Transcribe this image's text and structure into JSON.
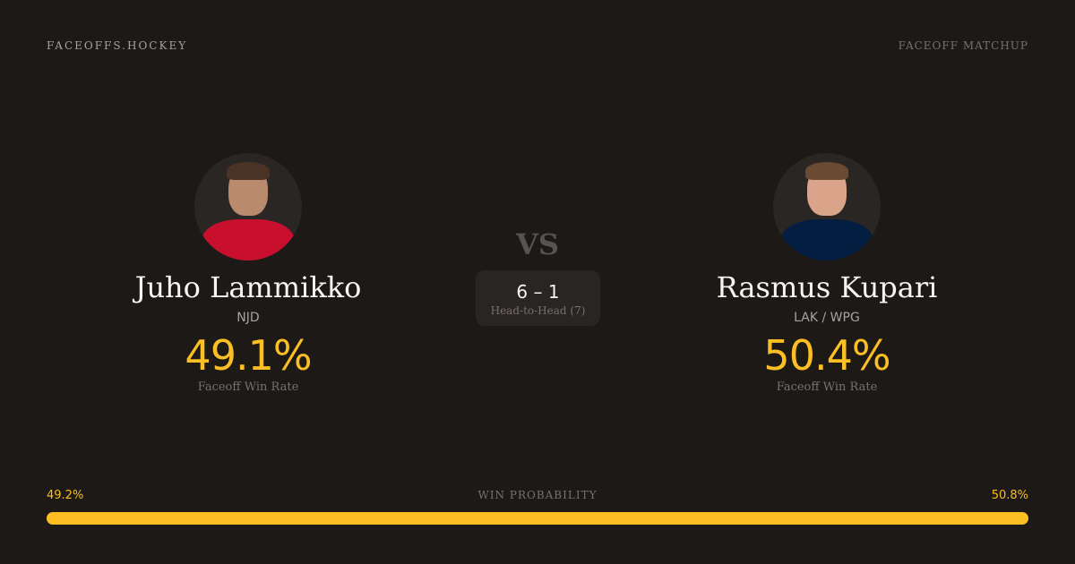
{
  "header": {
    "brand": "FACEOFFS.HOCKEY",
    "page_type": "FACEOFF MATCHUP"
  },
  "player1": {
    "name": "Juho Lammikko",
    "team": "NJD",
    "win_rate": "49.1%",
    "win_rate_label": "Faceoff Win Rate",
    "jersey_color": "#c8102e"
  },
  "player2": {
    "name": "Rasmus Kupari",
    "team": "LAK / WPG",
    "win_rate": "50.4%",
    "win_rate_label": "Faceoff Win Rate",
    "jersey_color": "#041e42"
  },
  "vs": "VS",
  "head_to_head": {
    "score": "6 – 1",
    "label": "Head-to-Head (7)"
  },
  "win_probability": {
    "label": "WIN PROBABILITY",
    "left": "49.2%",
    "right": "50.8%",
    "left_value": 49.2,
    "right_value": 50.8,
    "bar_color": "#fbbf24"
  }
}
